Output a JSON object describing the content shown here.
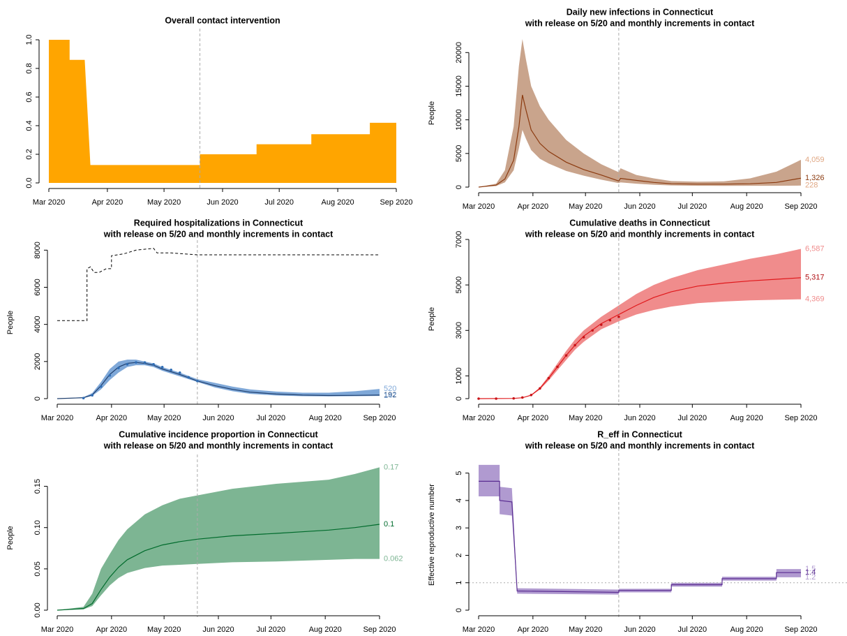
{
  "chart_data": [
    {
      "type": "area",
      "title": "Overall contact intervention",
      "color": "#FFA500",
      "xlim": [
        0,
        184
      ],
      "ylim": [
        0,
        1
      ],
      "vline": 80,
      "xticks": [
        {
          "value": 0,
          "label": "Mar 2020"
        },
        {
          "value": 31,
          "label": "Apr 2020"
        },
        {
          "value": 61,
          "label": "May 2020"
        },
        {
          "value": 92,
          "label": "Jun 2020"
        },
        {
          "value": 122,
          "label": "Jul 2020"
        },
        {
          "value": 153,
          "label": "Aug 2020"
        },
        {
          "value": 184,
          "label": "Sep 2020"
        }
      ],
      "yticks": [
        {
          "value": 0,
          "label": "0.0"
        },
        0.2,
        0.4,
        0.6,
        0.8,
        {
          "value": 1,
          "label": "1.0"
        }
      ],
      "x": [
        0,
        11,
        11,
        19,
        22,
        80,
        80,
        110,
        110,
        139,
        139,
        170,
        170,
        184
      ],
      "values": [
        1,
        1,
        0.86,
        0.86,
        0.125,
        0.125,
        0.2,
        0.2,
        0.27,
        0.27,
        0.34,
        0.34,
        0.42,
        0.42
      ]
    },
    {
      "type": "band",
      "title": "Daily new infections in Connecticut",
      "subtitle": "with release on 5/20 and monthly increments in contact",
      "ylabel": "People",
      "xlim": [
        0,
        184
      ],
      "ylim": [
        0,
        22000
      ],
      "vline": 80,
      "xticks": [
        {
          "value": 0,
          "label": "Mar 2020"
        },
        {
          "value": 31,
          "label": "Apr 2020"
        },
        {
          "value": 61,
          "label": "May 2020"
        },
        {
          "value": 92,
          "label": "Jun 2020"
        },
        {
          "value": 122,
          "label": "Jul 2020"
        },
        {
          "value": 153,
          "label": "Aug 2020"
        },
        {
          "value": 184,
          "label": "Sep 2020"
        }
      ],
      "yticks": [
        0,
        5000,
        10000,
        15000,
        20000
      ],
      "x": [
        0,
        10,
        15,
        20,
        23,
        25,
        27,
        30,
        35,
        40,
        50,
        60,
        70,
        80,
        81,
        90,
        100,
        110,
        125,
        140,
        155,
        170,
        184
      ],
      "band": {
        "color": "#c9a48c",
        "upper": [
          0,
          500,
          2500,
          9000,
          18000,
          22000,
          19000,
          15000,
          12000,
          10000,
          7000,
          5000,
          3400,
          2200,
          2800,
          1800,
          1300,
          900,
          800,
          850,
          1300,
          2300,
          4059
        ],
        "lower": [
          0,
          150,
          700,
          2500,
          5800,
          8500,
          7200,
          5500,
          4200,
          3500,
          2400,
          1700,
          1100,
          600,
          700,
          500,
          350,
          250,
          200,
          180,
          190,
          200,
          228
        ]
      },
      "line": {
        "color": "#8b3a0f",
        "values": [
          0,
          300,
          1200,
          4000,
          9000,
          13700,
          11500,
          8500,
          6500,
          5300,
          3700,
          2600,
          1800,
          900,
          1300,
          1000,
          700,
          500,
          450,
          450,
          500,
          700,
          1326
        ]
      },
      "end_labels": [
        {
          "value": 4059,
          "label": "4,059",
          "color": "#e0a783"
        },
        {
          "value": 1326,
          "label": "1,326",
          "color": "#8b3a0f"
        },
        {
          "value": 228,
          "label": "228",
          "color": "#e0a783"
        }
      ]
    },
    {
      "type": "band",
      "title": "Required hospitalizations in Connecticut",
      "subtitle": "with release on 5/20 and monthly increments in contact",
      "ylabel": "People",
      "xlim": [
        0,
        184
      ],
      "ylim": [
        0,
        8200
      ],
      "vline": 80,
      "xticks": [
        {
          "value": 0,
          "label": "Mar 2020"
        },
        {
          "value": 31,
          "label": "Apr 2020"
        },
        {
          "value": 61,
          "label": "May 2020"
        },
        {
          "value": 92,
          "label": "Jun 2020"
        },
        {
          "value": 122,
          "label": "Jul 2020"
        },
        {
          "value": 153,
          "label": "Aug 2020"
        },
        {
          "value": 184,
          "label": "Sep 2020"
        }
      ],
      "yticks": [
        0,
        2000,
        4000,
        6000,
        8000
      ],
      "x": [
        0,
        15,
        20,
        25,
        30,
        35,
        40,
        45,
        50,
        55,
        60,
        70,
        80,
        90,
        100,
        110,
        125,
        140,
        155,
        170,
        184
      ],
      "band": {
        "color": "#7fa8d8",
        "upper": [
          0,
          80,
          300,
          900,
          1600,
          2000,
          2100,
          2100,
          2000,
          1900,
          1700,
          1400,
          1050,
          850,
          650,
          500,
          380,
          320,
          320,
          400,
          520
        ],
        "lower": [
          0,
          30,
          150,
          500,
          1000,
          1400,
          1700,
          1800,
          1800,
          1700,
          1500,
          1200,
          900,
          600,
          400,
          260,
          170,
          130,
          120,
          130,
          147
        ]
      },
      "line": {
        "color": "#1f3f6e",
        "values": [
          0,
          50,
          200,
          700,
          1300,
          1700,
          1900,
          1950,
          1900,
          1800,
          1600,
          1300,
          950,
          700,
          500,
          350,
          250,
          190,
          170,
          175,
          192
        ]
      },
      "reference_line": {
        "color": "#000000",
        "x": [
          0,
          17,
          17,
          19,
          21,
          24,
          28,
          31,
          31,
          38,
          45,
          55,
          57,
          65,
          80,
          184
        ],
        "values": [
          4200,
          4200,
          7000,
          7100,
          6800,
          6800,
          7000,
          7000,
          7700,
          7800,
          8000,
          8100,
          7850,
          7850,
          7750,
          7750
        ]
      },
      "observed": {
        "color": "#2f6db5",
        "x": [
          15,
          20,
          25,
          30,
          35,
          40,
          45,
          50,
          55,
          60,
          65,
          70,
          75,
          80
        ],
        "values": [
          30,
          180,
          650,
          1250,
          1650,
          1850,
          1950,
          1950,
          1850,
          1700,
          1550,
          1400,
          1150,
          950
        ]
      },
      "end_labels": [
        {
          "value": 520,
          "label": "520",
          "color": "#7fa8d8"
        },
        {
          "value": 192,
          "label": "192",
          "color": "#1f3f6e"
        },
        {
          "value": 147,
          "label": "147",
          "color": "#7fa8d8"
        }
      ]
    },
    {
      "type": "band",
      "title": "Cumulative deaths in Connecticut",
      "subtitle": "with release on 5/20 and monthly increments in contact",
      "ylabel": "People",
      "xlim": [
        0,
        184
      ],
      "ylim": [
        0,
        7000
      ],
      "vline": 80,
      "xticks": [
        {
          "value": 0,
          "label": "Mar 2020"
        },
        {
          "value": 31,
          "label": "Apr 2020"
        },
        {
          "value": 61,
          "label": "May 2020"
        },
        {
          "value": 92,
          "label": "Jun 2020"
        },
        {
          "value": 122,
          "label": "Jul 2020"
        },
        {
          "value": 153,
          "label": "Aug 2020"
        },
        {
          "value": 184,
          "label": "Sep 2020"
        }
      ],
      "yticks": [
        0,
        1000,
        3000,
        5000,
        7000
      ],
      "x": [
        0,
        20,
        25,
        30,
        35,
        40,
        45,
        50,
        55,
        60,
        70,
        80,
        90,
        100,
        110,
        125,
        140,
        155,
        170,
        184
      ],
      "band": {
        "color": "#f08c8c",
        "upper": [
          0,
          10,
          45,
          170,
          500,
          1000,
          1550,
          2100,
          2600,
          3000,
          3600,
          4100,
          4600,
          5000,
          5300,
          5650,
          5900,
          6150,
          6350,
          6587
        ],
        "lower": [
          0,
          10,
          35,
          130,
          400,
          800,
          1250,
          1700,
          2150,
          2500,
          3050,
          3400,
          3700,
          3900,
          4050,
          4200,
          4270,
          4320,
          4350,
          4369
        ]
      },
      "line": {
        "color": "#e0181b",
        "values": [
          0,
          10,
          40,
          150,
          450,
          900,
          1400,
          1900,
          2350,
          2750,
          3300,
          3700,
          4100,
          4450,
          4700,
          4950,
          5080,
          5180,
          5250,
          5317
        ]
      },
      "observed": {
        "color": "#c81418",
        "x": [
          0,
          10,
          20,
          25,
          30,
          35,
          40,
          45,
          50,
          55,
          60,
          65,
          70,
          75,
          80
        ],
        "values": [
          0,
          0,
          10,
          50,
          160,
          450,
          900,
          1400,
          1900,
          2350,
          2700,
          3000,
          3250,
          3450,
          3600
        ]
      },
      "end_labels": [
        {
          "value": 6587,
          "label": "6,587",
          "color": "#f08c8c"
        },
        {
          "value": 5317,
          "label": "5,317",
          "color": "#b01014"
        },
        {
          "value": 4369,
          "label": "4,369",
          "color": "#f08c8c"
        }
      ]
    },
    {
      "type": "band",
      "title": "Cumulative incidence proportion in Connecticut",
      "subtitle": "with release on 5/20 and monthly increments in contact",
      "ylabel": "People",
      "xlim": [
        0,
        184
      ],
      "ylim": [
        0,
        0.175
      ],
      "vline": 80,
      "xticks": [
        {
          "value": 0,
          "label": "Mar 2020"
        },
        {
          "value": 31,
          "label": "Apr 2020"
        },
        {
          "value": 61,
          "label": "May 2020"
        },
        {
          "value": 92,
          "label": "Jun 2020"
        },
        {
          "value": 122,
          "label": "Jul 2020"
        },
        {
          "value": 153,
          "label": "Aug 2020"
        },
        {
          "value": 184,
          "label": "Sep 2020"
        }
      ],
      "yticks": [
        {
          "value": 0,
          "label": "0.00"
        },
        0.05,
        {
          "value": 0.1,
          "label": "0.10"
        },
        0.15
      ],
      "x": [
        0,
        15,
        20,
        25,
        30,
        35,
        40,
        50,
        60,
        70,
        80,
        100,
        125,
        155,
        170,
        184
      ],
      "band": {
        "color": "#7db593",
        "upper": [
          0,
          0.004,
          0.02,
          0.05,
          0.068,
          0.085,
          0.098,
          0.116,
          0.127,
          0.135,
          0.139,
          0.147,
          0.153,
          0.158,
          0.165,
          0.173
        ],
        "lower": [
          0,
          0.001,
          0.005,
          0.018,
          0.03,
          0.039,
          0.045,
          0.051,
          0.054,
          0.055,
          0.056,
          0.058,
          0.059,
          0.061,
          0.062,
          0.062
        ]
      },
      "line": {
        "color": "#006b2c",
        "values": [
          0,
          0.002,
          0.008,
          0.025,
          0.04,
          0.052,
          0.061,
          0.072,
          0.079,
          0.083,
          0.086,
          0.09,
          0.093,
          0.097,
          0.1,
          0.104
        ]
      },
      "end_labels": [
        {
          "value": 0.173,
          "label": "0.17",
          "color": "#7db593"
        },
        {
          "value": 0.104,
          "label": "0.1",
          "color": "#006b2c"
        },
        {
          "value": 0.062,
          "label": "0.062",
          "color": "#7db593"
        }
      ]
    },
    {
      "type": "band",
      "title": "R_eff in Connecticut",
      "subtitle": "with release on 5/20 and monthly increments in contact",
      "ylabel": "Effective reproductive number",
      "xlim": [
        0,
        184
      ],
      "ylim": [
        0,
        5.5
      ],
      "vline": 80,
      "hline": 1,
      "xticks": [
        {
          "value": 0,
          "label": "Mar 2020"
        },
        {
          "value": 31,
          "label": "Apr 2020"
        },
        {
          "value": 61,
          "label": "May 2020"
        },
        {
          "value": 92,
          "label": "Jun 2020"
        },
        {
          "value": 122,
          "label": "Jul 2020"
        },
        {
          "value": 153,
          "label": "Aug 2020"
        },
        {
          "value": 184,
          "label": "Sep 2020"
        }
      ],
      "yticks": [
        0,
        1,
        2,
        3,
        4,
        5
      ],
      "x": [
        0,
        12,
        12,
        19,
        22,
        80,
        80,
        110,
        110,
        139,
        139,
        170,
        170,
        184
      ],
      "band": {
        "color": "#b09ad0",
        "upper": [
          5.3,
          5.3,
          4.5,
          4.45,
          0.8,
          0.75,
          0.78,
          0.78,
          1.0,
          1.0,
          1.22,
          1.22,
          1.5,
          1.5
        ],
        "lower": [
          4.15,
          4.15,
          3.5,
          3.45,
          0.6,
          0.57,
          0.65,
          0.65,
          0.86,
          0.86,
          1.08,
          1.08,
          1.2,
          1.2
        ]
      },
      "line": {
        "color": "#5a2d91",
        "values": [
          4.7,
          4.7,
          4.0,
          3.95,
          0.7,
          0.65,
          0.72,
          0.72,
          0.93,
          0.93,
          1.15,
          1.15,
          1.37,
          1.37
        ]
      },
      "end_labels": [
        {
          "value": 1.5,
          "label": "1.5",
          "color": "#b09ad0"
        },
        {
          "value": 1.37,
          "label": "1.4",
          "color": "#5a2d91"
        },
        {
          "value": 1.2,
          "label": "1.2",
          "color": "#b09ad0"
        }
      ]
    }
  ]
}
